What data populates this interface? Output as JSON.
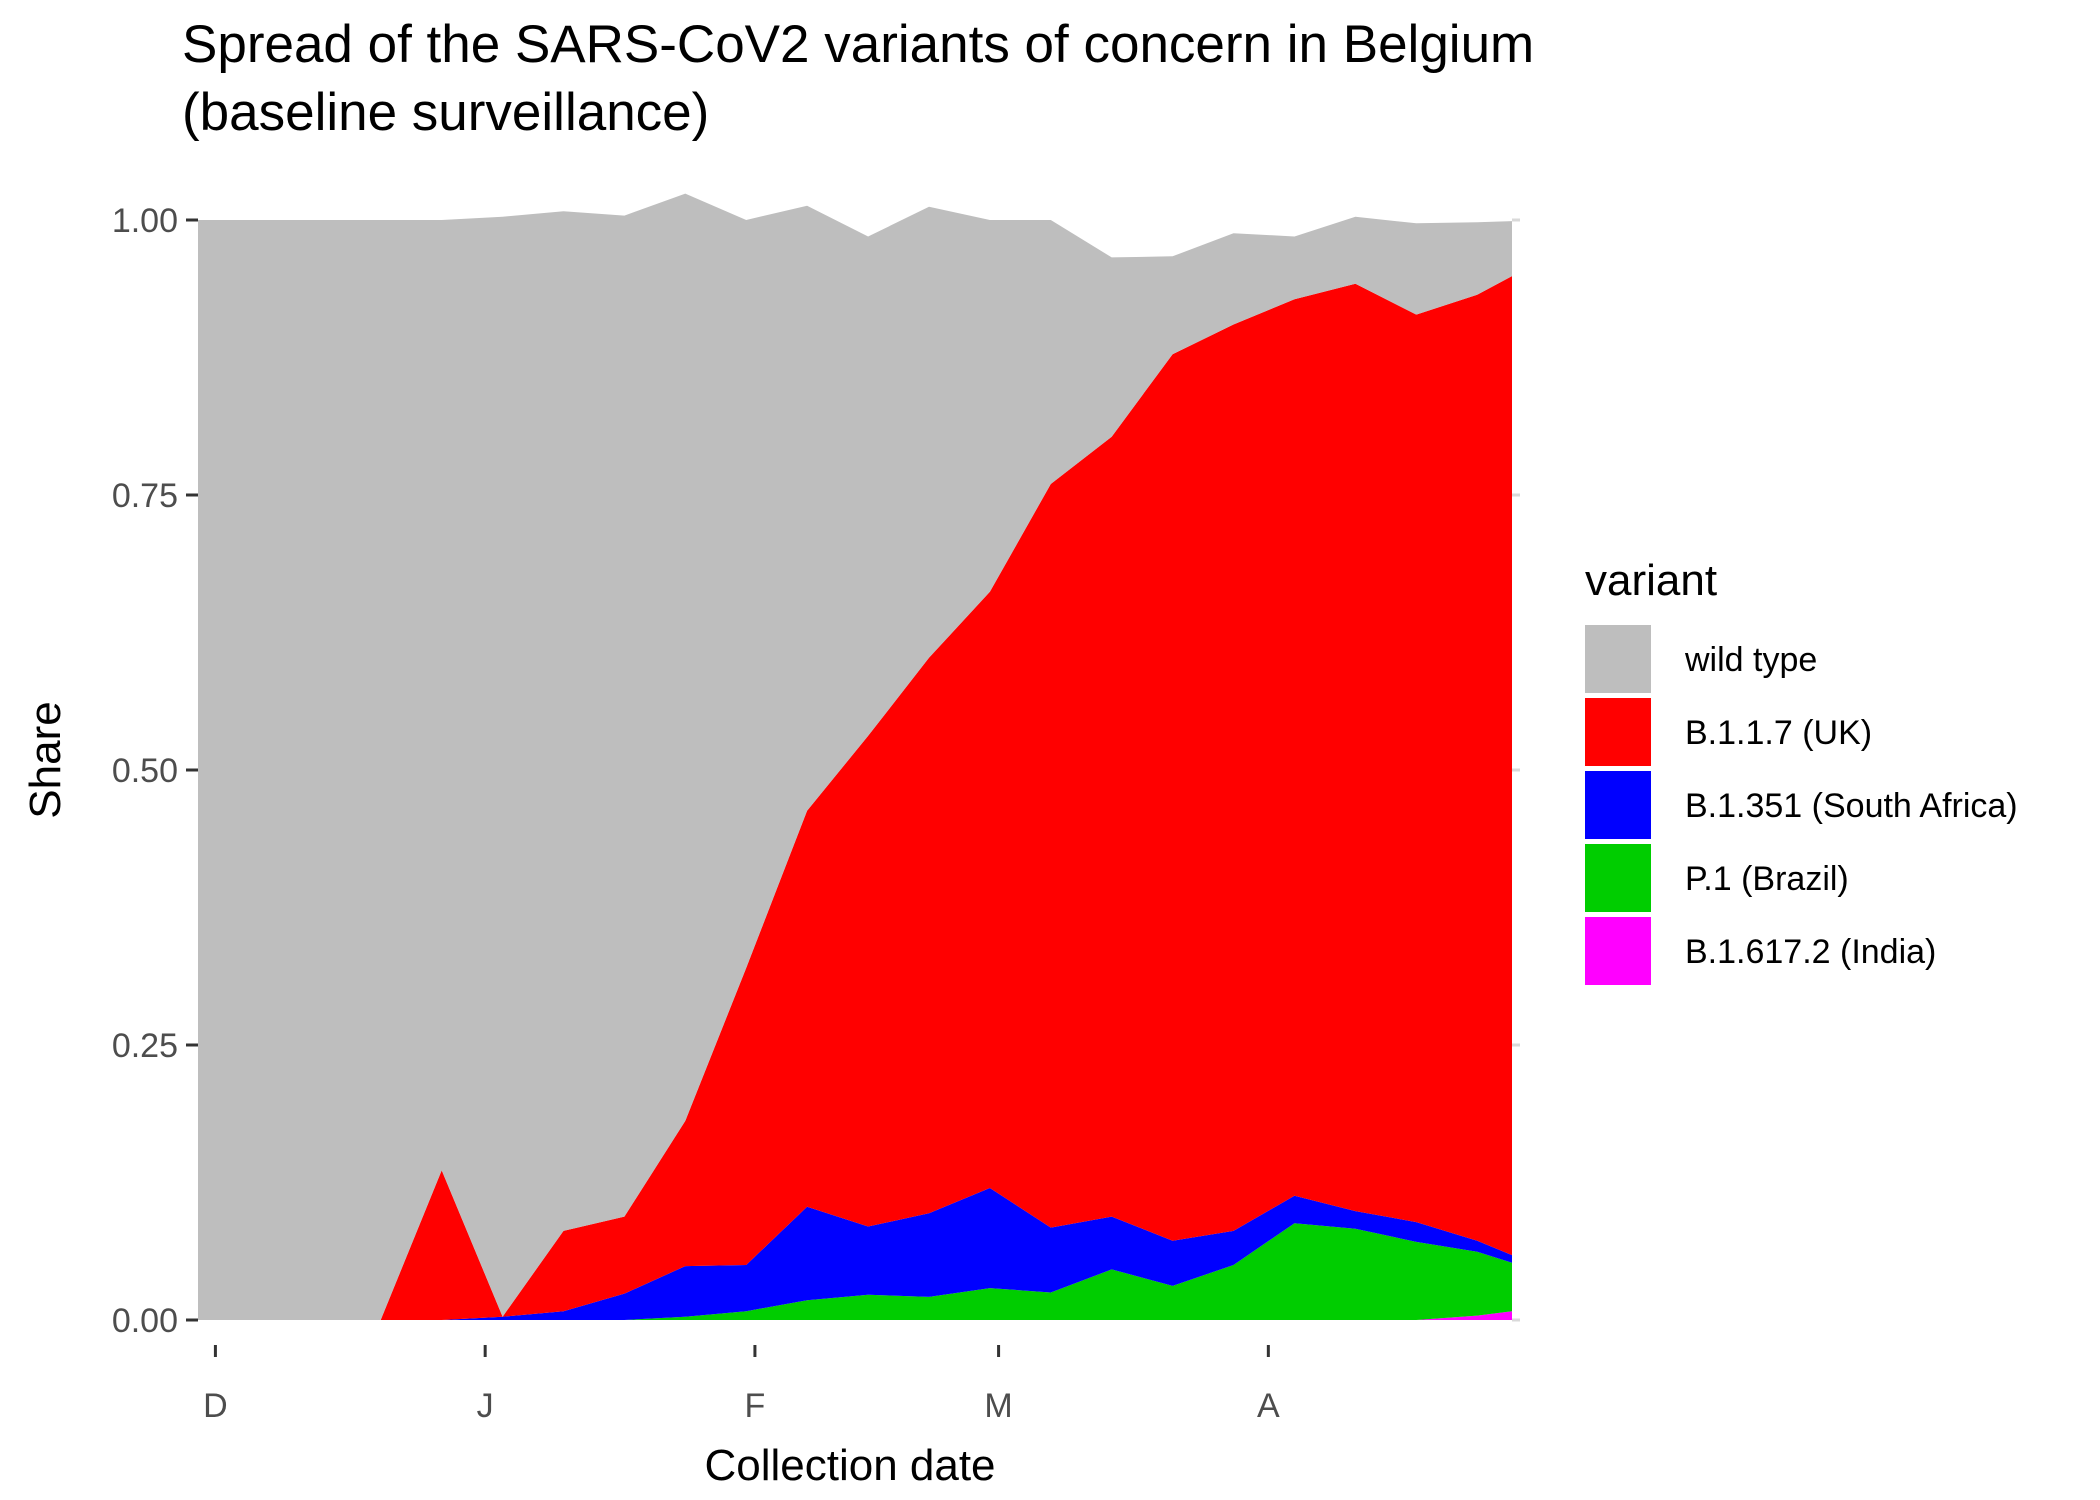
{
  "chart_data": {
    "type": "area",
    "stacked": true,
    "title_lines": [
      "Spread of the SARS-CoV2 variants of concern in Belgium",
      "(baseline surveillance)"
    ],
    "xlabel": "Collection date",
    "ylabel": "Share",
    "x_ticks": [
      {
        "label": "D",
        "date": "2020-12-01"
      },
      {
        "label": "J",
        "date": "2021-01-01"
      },
      {
        "label": "F",
        "date": "2021-02-01"
      },
      {
        "label": "M",
        "date": "2021-03-01"
      },
      {
        "label": "A",
        "date": "2021-04-01"
      }
    ],
    "xlim": [
      "2020-11-29",
      "2021-04-29"
    ],
    "y_ticks": [
      "0.00",
      "0.25",
      "0.50",
      "0.75",
      "1.00"
    ],
    "ylim": [
      0,
      1
    ],
    "grid": false,
    "legend": {
      "title": "variant",
      "position": "right"
    },
    "x": [
      "2020-11-29",
      "2020-12-06",
      "2020-12-13",
      "2020-12-20",
      "2020-12-27",
      "2021-01-03",
      "2021-01-10",
      "2021-01-17",
      "2021-01-24",
      "2021-01-31",
      "2021-02-07",
      "2021-02-14",
      "2021-02-21",
      "2021-02-28",
      "2021-03-07",
      "2021-03-14",
      "2021-03-21",
      "2021-03-28",
      "2021-04-04",
      "2021-04-11",
      "2021-04-18",
      "2021-04-25",
      "2021-04-29"
    ],
    "series": [
      {
        "name": "B.1.617.2 (India)",
        "color": "#ff00ff",
        "values": [
          0,
          0,
          0,
          0,
          0,
          0,
          0,
          0,
          0,
          0,
          0,
          0,
          0,
          0,
          0,
          0,
          0,
          0,
          0,
          0,
          0,
          0.004,
          0.008
        ]
      },
      {
        "name": "P.1 (Brazil)",
        "color": "#00cd00",
        "values": [
          0,
          0,
          0,
          0,
          0,
          0,
          0,
          0,
          0.003,
          0.008,
          0.018,
          0.023,
          0.021,
          0.029,
          0.025,
          0.046,
          0.031,
          0.05,
          0.088,
          0.083,
          0.071,
          0.058,
          0.044
        ]
      },
      {
        "name": "B.1.351 (South Africa)",
        "color": "#0000ff",
        "values": [
          0,
          0,
          0,
          0,
          0,
          0.003,
          0.008,
          0.024,
          0.046,
          0.042,
          0.085,
          0.062,
          0.076,
          0.091,
          0.059,
          0.048,
          0.041,
          0.031,
          0.025,
          0.016,
          0.018,
          0.01,
          0.007
        ]
      },
      {
        "name": "B.1.1.7 (UK)",
        "color": "#ff0000",
        "values": [
          0,
          0,
          0,
          0,
          0.136,
          0,
          0.073,
          0.07,
          0.132,
          0.27,
          0.36,
          0.446,
          0.505,
          0.542,
          0.676,
          0.709,
          0.806,
          0.824,
          0.815,
          0.843,
          0.825,
          0.86,
          0.89
        ]
      },
      {
        "name": "wild type",
        "color": "#bebebe",
        "values": [
          1,
          1,
          1,
          1,
          0.864,
          1,
          0.927,
          0.91,
          0.843,
          0.68,
          0.55,
          0.454,
          0.41,
          0.338,
          0.24,
          0.163,
          0.089,
          0.083,
          0.057,
          0.061,
          0.083,
          0.066,
          0.05
        ]
      }
    ],
    "legend_order": [
      "wild type",
      "B.1.1.7 (UK)",
      "B.1.351 (South Africa)",
      "P.1 (Brazil)",
      "B.1.617.2 (India)"
    ]
  }
}
